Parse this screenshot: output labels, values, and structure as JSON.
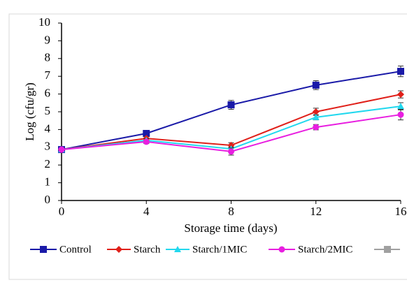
{
  "chart_data": {
    "type": "line",
    "x_label": "Storage time (days)",
    "y_label": "Log (cfu/gr)",
    "x": [
      0,
      4,
      8,
      12,
      16
    ],
    "xlim": [
      0,
      16
    ],
    "xticks": [
      0,
      4,
      8,
      12,
      16
    ],
    "ylim": [
      0,
      10
    ],
    "yticks": [
      0,
      1,
      2,
      3,
      4,
      5,
      6,
      7,
      8,
      9,
      10
    ],
    "grid": false,
    "legend": "bottom",
    "series": [
      {
        "name": "Control",
        "color": "#1a1aa8",
        "marker": "square",
        "values": [
          2.87,
          3.78,
          5.39,
          6.5,
          7.28
        ],
        "errors": [
          0.05,
          0.1,
          0.25,
          0.25,
          0.3
        ]
      },
      {
        "name": "Starch",
        "color": "#e0201a",
        "marker": "diamond",
        "values": [
          2.87,
          3.5,
          3.11,
          5.0,
          5.98
        ],
        "errors": [
          0.05,
          0.1,
          0.15,
          0.2,
          0.2
        ]
      },
      {
        "name": "Starch/1MIC",
        "color": "#22d8ee",
        "marker": "triangle",
        "values": [
          2.87,
          3.39,
          2.91,
          4.69,
          5.31
        ],
        "errors": [
          0.05,
          0.1,
          0.1,
          0.15,
          0.2
        ]
      },
      {
        "name": "Starch/2MIC",
        "color": "#e81ee0",
        "marker": "circle",
        "values": [
          2.87,
          3.31,
          2.76,
          4.13,
          4.84
        ],
        "errors": [
          0.05,
          0.1,
          0.2,
          0.15,
          0.3
        ]
      }
    ]
  }
}
